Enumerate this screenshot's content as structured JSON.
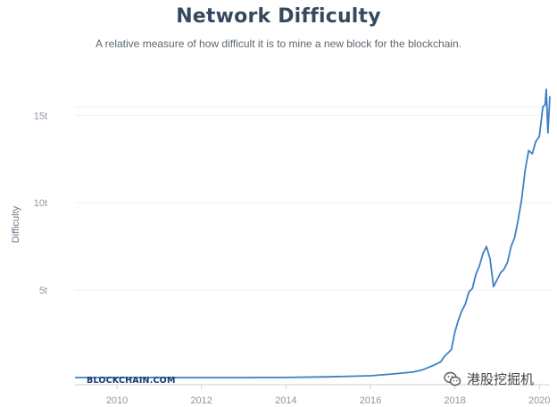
{
  "chart_data": {
    "type": "line",
    "title": "Network Difficulty",
    "subtitle": "A relative measure of how difficult it is to mine a new block for the blockchain.",
    "ylabel": "Difficulty",
    "xlabel": "",
    "x_ticks": [
      "2010",
      "2012",
      "2014",
      "2016",
      "2018",
      "2020"
    ],
    "y_ticks": [
      "5t",
      "10t",
      "15t"
    ],
    "ylim": [
      0,
      16.5
    ],
    "xlim": [
      "2009-01-03",
      "2020-04-01"
    ],
    "grid": true,
    "series_color": "#3d7fc7",
    "series": [
      {
        "x": [
          "2009-01-03",
          "2010-01-01",
          "2011-01-01",
          "2012-01-01",
          "2013-01-01",
          "2014-01-01",
          "2015-01-01",
          "2016-01-01",
          "2016-07-01",
          "2017-01-01",
          "2017-04-01",
          "2017-07-01",
          "2017-09-01",
          "2017-10-01",
          "2017-11-01",
          "2017-12-01",
          "2018-01-01",
          "2018-02-01",
          "2018-03-01",
          "2018-04-01",
          "2018-05-01",
          "2018-06-01",
          "2018-07-01",
          "2018-08-01",
          "2018-09-01",
          "2018-10-01",
          "2018-11-01",
          "2018-12-01",
          "2019-01-01",
          "2019-02-01",
          "2019-03-01",
          "2019-04-01",
          "2019-05-01",
          "2019-06-01",
          "2019-07-01",
          "2019-08-01",
          "2019-09-01",
          "2019-10-01",
          "2019-11-01",
          "2019-12-01",
          "2020-01-01",
          "2020-02-01",
          "2020-02-20",
          "2020-03-01",
          "2020-03-15",
          "2020-04-01"
        ],
        "y": [
          0,
          0,
          0,
          0,
          0,
          0.003,
          0.04,
          0.1,
          0.2,
          0.31,
          0.45,
          0.7,
          0.9,
          1.2,
          1.4,
          1.6,
          2.6,
          3.3,
          3.8,
          4.2,
          4.9,
          5.1,
          5.9,
          6.4,
          7.1,
          7.5,
          6.8,
          5.2,
          5.6,
          6.0,
          6.2,
          6.6,
          7.5,
          8.0,
          9.0,
          10.2,
          11.9,
          13.0,
          12.8,
          13.5,
          13.8,
          15.5,
          15.6,
          16.5,
          14.0,
          16.1
        ]
      }
    ]
  },
  "watermarks": {
    "source": "BLOCKCHAIN.COM",
    "account": "港股挖掘机"
  }
}
